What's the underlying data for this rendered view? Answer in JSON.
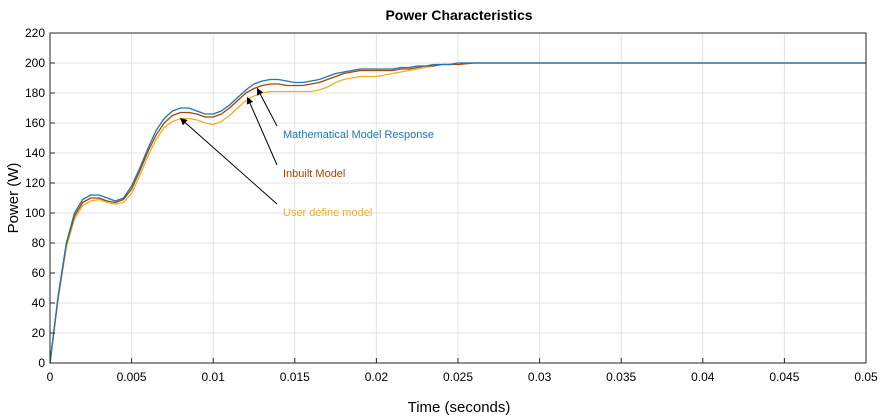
{
  "chart_data": {
    "type": "line",
    "title": "Power Characteristics",
    "xlabel": "Time (seconds)",
    "ylabel": "Power (W)",
    "xlim": [
      0,
      0.05
    ],
    "ylim": [
      0,
      220
    ],
    "grid": true,
    "x_ticks": [
      "0",
      "0.005",
      "0.01",
      "0.015",
      "0.02",
      "0.025",
      "0.03",
      "0.035",
      "0.04",
      "0.045",
      "0.05"
    ],
    "y_ticks": [
      "0",
      "20",
      "40",
      "60",
      "80",
      "100",
      "120",
      "140",
      "160",
      "180",
      "200",
      "220"
    ],
    "x": [
      0,
      0.0005,
      0.001,
      0.0015,
      0.002,
      0.0025,
      0.003,
      0.0035,
      0.004,
      0.0045,
      0.005,
      0.0055,
      0.006,
      0.0065,
      0.007,
      0.0075,
      0.008,
      0.0085,
      0.009,
      0.0095,
      0.01,
      0.0105,
      0.011,
      0.0115,
      0.012,
      0.0125,
      0.013,
      0.0135,
      0.014,
      0.0145,
      0.015,
      0.0155,
      0.016,
      0.0165,
      0.017,
      0.0175,
      0.018,
      0.0185,
      0.019,
      0.0195,
      0.02,
      0.0205,
      0.021,
      0.0215,
      0.022,
      0.0225,
      0.023,
      0.0235,
      0.024,
      0.0245,
      0.025,
      0.026,
      0.027,
      0.028,
      0.029,
      0.03,
      0.035,
      0.04,
      0.045,
      0.05
    ],
    "series": [
      {
        "name": "Mathematical Model Response",
        "color": "#1f77b4",
        "values": [
          0,
          45,
          80,
          100,
          109,
          112,
          112,
          110,
          108,
          110,
          118,
          130,
          143,
          155,
          163,
          168,
          170,
          170,
          168,
          166,
          166,
          168,
          172,
          177,
          182,
          186,
          188,
          189,
          189,
          188,
          187,
          187,
          188,
          189,
          191,
          193,
          194,
          195,
          196,
          196,
          196,
          196,
          196,
          197,
          197,
          198,
          198,
          199,
          199,
          199,
          200,
          200,
          200,
          200,
          200,
          200,
          200,
          200,
          200,
          200
        ]
      },
      {
        "name": "Inbuilt Model",
        "color": "#a84300",
        "values": [
          0,
          44,
          79,
          98,
          107,
          110,
          110,
          108,
          107,
          109,
          116,
          128,
          141,
          152,
          160,
          165,
          167,
          167,
          166,
          164,
          164,
          166,
          170,
          175,
          180,
          183,
          185,
          186,
          186,
          185,
          185,
          185,
          186,
          187,
          189,
          191,
          193,
          194,
          195,
          195,
          195,
          195,
          195,
          196,
          196,
          197,
          198,
          198,
          199,
          199,
          199,
          200,
          200,
          200,
          200,
          200,
          200,
          200,
          200,
          200
        ]
      },
      {
        "name": "User define model",
        "color": "#edb120",
        "values": [
          0,
          43,
          77,
          96,
          105,
          108,
          109,
          107,
          106,
          107,
          113,
          125,
          138,
          149,
          157,
          161,
          163,
          163,
          162,
          160,
          159,
          161,
          165,
          170,
          175,
          178,
          180,
          181,
          181,
          181,
          181,
          181,
          181,
          182,
          184,
          187,
          189,
          190,
          191,
          191,
          191,
          192,
          193,
          194,
          195,
          196,
          197,
          198,
          199,
          199,
          200,
          200,
          200,
          200,
          200,
          200,
          200,
          200,
          200,
          200
        ]
      }
    ],
    "annotations": [
      {
        "text": "Mathematical Model Response",
        "color": "#1f77b4",
        "arrow_to": [
          0.0127,
          183
        ]
      },
      {
        "text": "Inbuilt Model",
        "color": "#a84300",
        "arrow_to": [
          0.0121,
          177
        ]
      },
      {
        "text": "User define model",
        "color": "#edb120",
        "arrow_to": [
          0.008,
          163
        ]
      }
    ]
  }
}
